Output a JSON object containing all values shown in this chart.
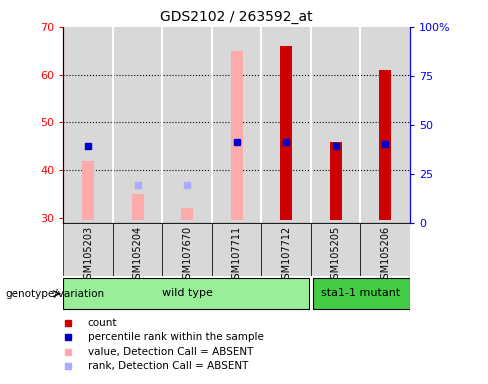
{
  "title": "GDS2102 / 263592_at",
  "sample_labels": [
    "GSM105203",
    "GSM105204",
    "GSM107670",
    "GSM107711",
    "GSM107712",
    "GSM105205",
    "GSM105206"
  ],
  "ylim_left": [
    29,
    70
  ],
  "ylim_right": [
    0,
    100
  ],
  "yticks_left": [
    30,
    40,
    50,
    60,
    70
  ],
  "yticks_right": [
    0,
    25,
    50,
    75,
    100
  ],
  "ytick_labels_right": [
    "0",
    "25",
    "50",
    "75",
    "100%"
  ],
  "count_values": [
    null,
    null,
    null,
    null,
    66,
    46,
    61
  ],
  "percentile_values": [
    39,
    null,
    null,
    41,
    41,
    39,
    40
  ],
  "absent_value_values": [
    42,
    35,
    32,
    65,
    null,
    null,
    null
  ],
  "absent_rank_values": [
    null,
    37,
    37,
    null,
    null,
    null,
    null
  ],
  "count_color": "#cc0000",
  "percentile_color": "#0000cc",
  "absent_value_color": "#ffaaaa",
  "absent_rank_color": "#aaaaff",
  "bg_color": "#d8d8d8",
  "genotype_wild": "wild type",
  "genotype_mutant": "sta1-1 mutant",
  "wild_count": 5,
  "mutant_count": 2,
  "wild_color": "#99ee99",
  "mutant_color": "#44cc44",
  "ybase": 29.5,
  "bar_width": 0.35
}
